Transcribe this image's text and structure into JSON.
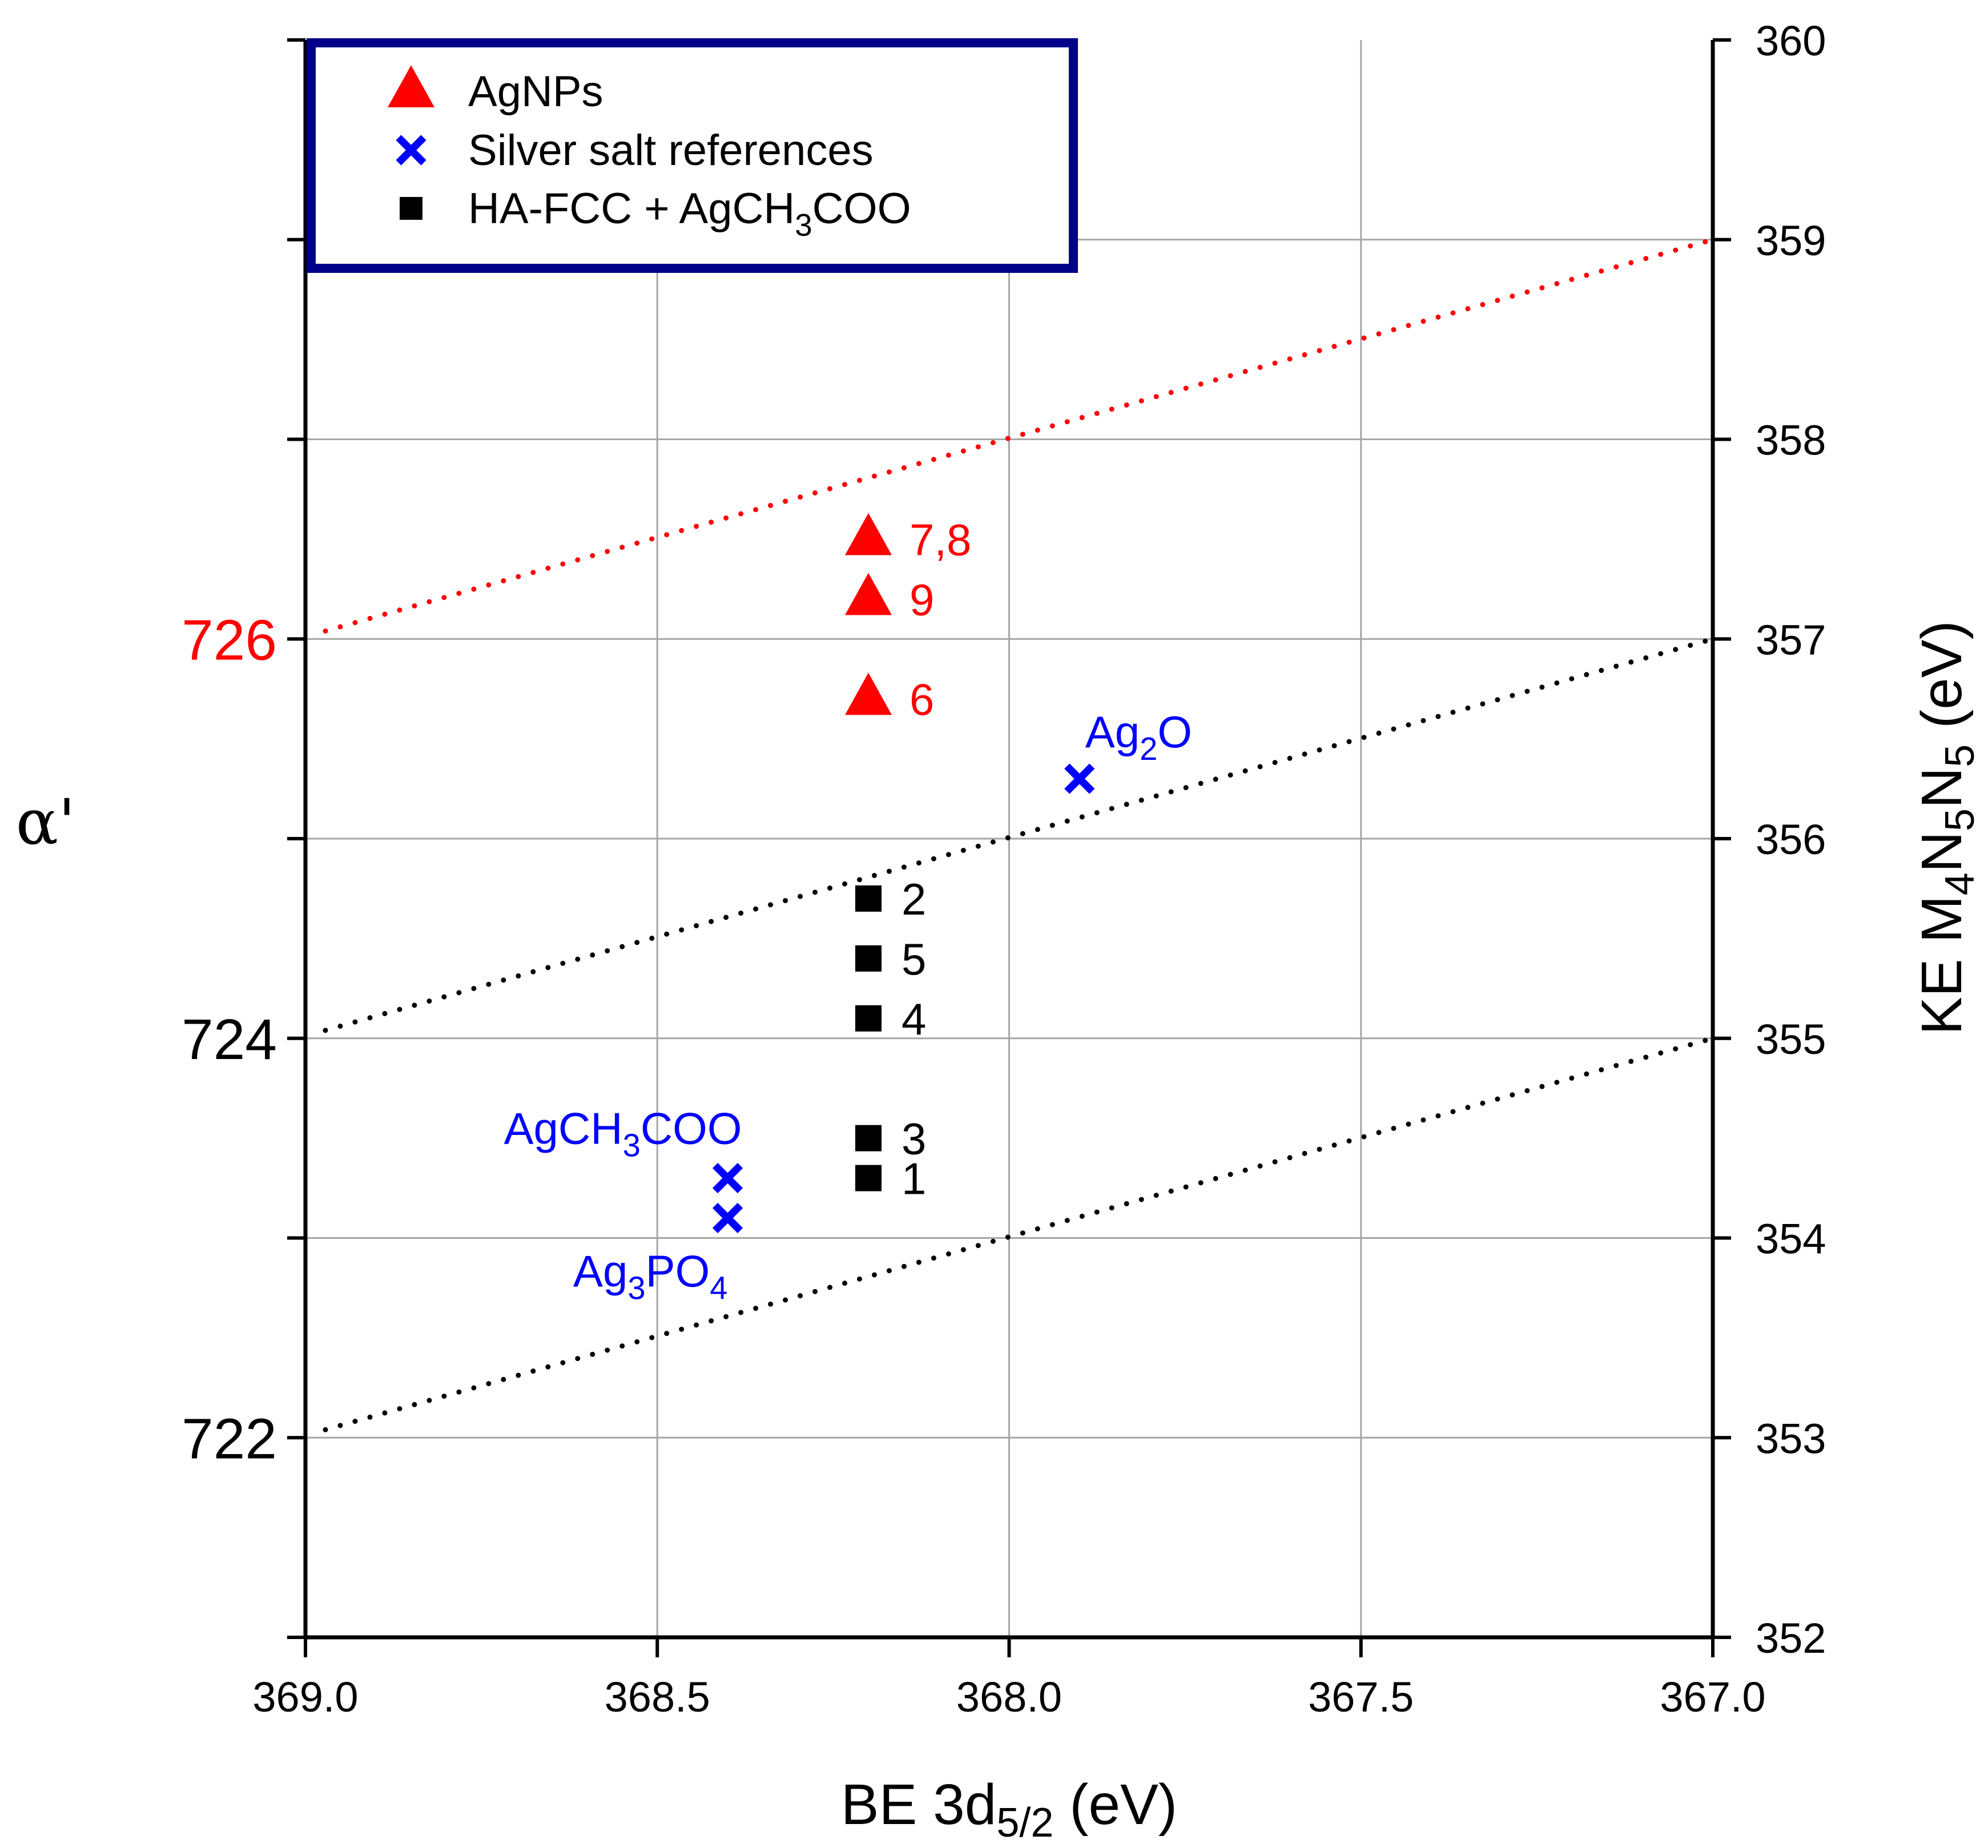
{
  "chart_data": {
    "type": "scatter",
    "title": "",
    "xlabel": {
      "main": "BE 3d",
      "sub": "5/2",
      "unit": " (eV)"
    },
    "ylabel_right": {
      "parts": [
        {
          "t": "KE M"
        },
        {
          "t": "4",
          "sub": true
        },
        {
          "t": "N"
        },
        {
          "t": "5",
          "sub": true
        },
        {
          "t": "N"
        },
        {
          "t": "5",
          "sub": true
        },
        {
          "t": " (eV)"
        }
      ]
    },
    "ylabel_left": "α'",
    "xlim": [
      369.0,
      367.0
    ],
    "x_reversed": true,
    "ylim_right": [
      352,
      360
    ],
    "x_ticks": [
      "369.0",
      "368.5",
      "368.0",
      "367.5",
      "367.0"
    ],
    "x_tick_values": [
      369.0,
      368.5,
      368.0,
      367.5,
      367.0
    ],
    "y_right_ticks": [
      "352",
      "353",
      "354",
      "355",
      "356",
      "357",
      "358",
      "359",
      "360"
    ],
    "y_right_tick_values": [
      352,
      353,
      354,
      355,
      356,
      357,
      358,
      359,
      360
    ],
    "grid": true,
    "legend_position": "top-left",
    "legend": [
      {
        "marker": "triangle",
        "color": "#ff0000",
        "label": "AgNPs"
      },
      {
        "marker": "cross",
        "color": "#0000ff",
        "label": "Silver salt references"
      },
      {
        "marker": "square",
        "color": "#000000",
        "label_parts": [
          {
            "t": "HA-FCC + AgCH"
          },
          {
            "t": "3",
            "sub": true
          },
          {
            "t": "COO"
          }
        ]
      }
    ],
    "alpha_lines": [
      {
        "alpha": "726",
        "color": "#ff0000",
        "x_start": 369.0,
        "x_end": 367.0,
        "ke_start": 357,
        "ke_end": 359
      },
      {
        "alpha": "724",
        "color": "#000000",
        "x_start": 369.0,
        "x_end": 367.0,
        "ke_start": 355,
        "ke_end": 357
      },
      {
        "alpha": "722",
        "color": "#000000",
        "x_start": 369.0,
        "x_end": 367.0,
        "ke_start": 353,
        "ke_end": 355
      }
    ],
    "series": [
      {
        "name": "AgNPs",
        "marker": "triangle",
        "color": "#ff0000",
        "points": [
          {
            "label": "7,8",
            "be": 368.2,
            "ke": 357.5
          },
          {
            "label": "9",
            "be": 368.2,
            "ke": 357.2
          },
          {
            "label": "6",
            "be": 368.2,
            "ke": 356.7
          }
        ]
      },
      {
        "name": "Silver salt references",
        "marker": "cross",
        "color": "#0000ff",
        "points": [
          {
            "name": "Ag2O",
            "label_parts": [
              {
                "t": "Ag"
              },
              {
                "t": "2",
                "sub": true
              },
              {
                "t": "O"
              }
            ],
            "label_pos": "above-right",
            "be": 367.9,
            "ke": 356.3
          },
          {
            "name": "AgCH3COO",
            "label_parts": [
              {
                "t": "AgCH"
              },
              {
                "t": "3",
                "sub": true
              },
              {
                "t": "COO"
              }
            ],
            "label_pos": "above-left",
            "be": 368.4,
            "ke": 354.3
          },
          {
            "name": "Ag3PO4",
            "label_parts": [
              {
                "t": "Ag"
              },
              {
                "t": "3",
                "sub": true
              },
              {
                "t": "PO"
              },
              {
                "t": "4",
                "sub": true
              }
            ],
            "label_pos": "below-left",
            "be": 368.4,
            "ke": 354.1
          }
        ]
      },
      {
        "name": "HA-FCC + AgCH3COO",
        "marker": "square",
        "color": "#000000",
        "points": [
          {
            "label": "2",
            "be": 368.2,
            "ke": 355.7
          },
          {
            "label": "5",
            "be": 368.2,
            "ke": 355.4
          },
          {
            "label": "4",
            "be": 368.2,
            "ke": 355.1
          },
          {
            "label": "3",
            "be": 368.2,
            "ke": 354.5
          },
          {
            "label": "1",
            "be": 368.2,
            "ke": 354.3
          }
        ]
      }
    ],
    "colors": {
      "legend_border": "#00008b",
      "grid": "#a6a6a6",
      "axis": "#000000",
      "salt": "#0000ff",
      "agnp": "#ff0000"
    }
  }
}
